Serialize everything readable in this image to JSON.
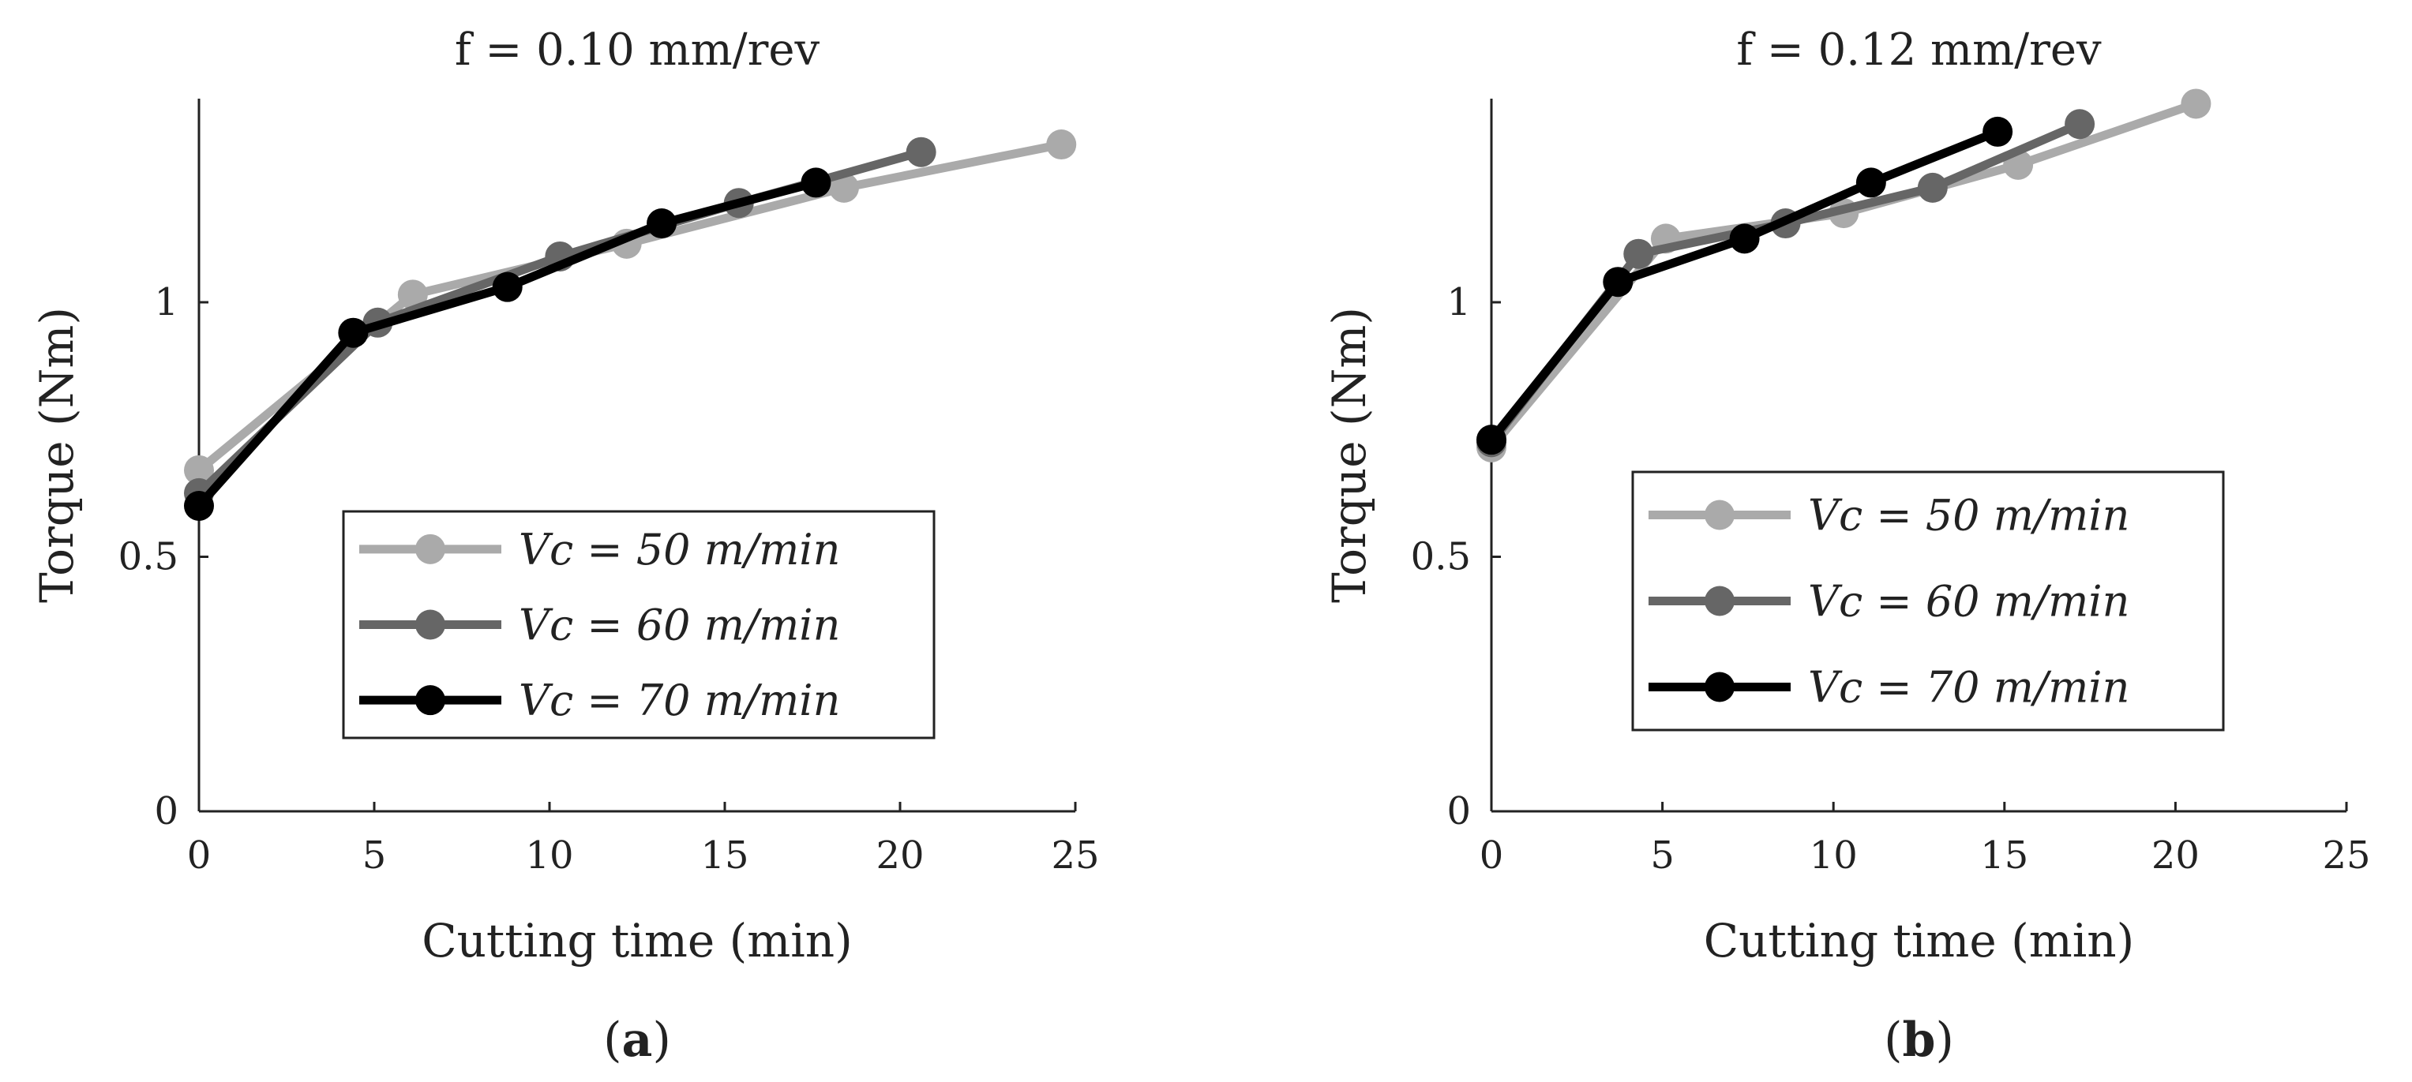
{
  "chart_data": [
    {
      "type": "line",
      "title": "f = 0.10 mm/rev",
      "xlabel": "Cutting time (min)",
      "ylabel": "Torque (Nm)",
      "xlim": [
        0,
        25
      ],
      "ylim": [
        0,
        1.4
      ],
      "xticks": [
        "0",
        "5",
        "10",
        "15",
        "20",
        "25"
      ],
      "yticks": [
        "0",
        "0.5",
        "1"
      ],
      "panel_label": {
        "open": "(",
        "letter": "a",
        "close": ")"
      },
      "legend_position": "bottom-right",
      "series": [
        {
          "name": "Vc = 50 m/min",
          "color": "#aaaaaa",
          "x": [
            0,
            6.1,
            12.2,
            18.4,
            24.6
          ],
          "y": [
            0.67,
            1.015,
            1.115,
            1.225,
            1.31
          ]
        },
        {
          "name": "Vc = 60 m/min",
          "color": "#666666",
          "x": [
            0,
            5.1,
            10.3,
            15.4,
            20.6
          ],
          "y": [
            0.625,
            0.96,
            1.09,
            1.195,
            1.295
          ]
        },
        {
          "name": "Vc = 70 m/min",
          "color": "#000000",
          "x": [
            0,
            4.4,
            8.8,
            13.2,
            17.6
          ],
          "y": [
            0.6,
            0.94,
            1.03,
            1.155,
            1.235
          ]
        }
      ]
    },
    {
      "type": "line",
      "title": "f = 0.12 mm/rev",
      "xlabel": "Cutting time (min)",
      "ylabel": "Torque (Nm)",
      "xlim": [
        0,
        25
      ],
      "ylim": [
        0,
        1.4
      ],
      "xticks": [
        "0",
        "5",
        "10",
        "15",
        "20",
        "25"
      ],
      "yticks": [
        "0",
        "0.5",
        "1"
      ],
      "panel_label": {
        "open": "(",
        "letter": "b",
        "close": ")"
      },
      "legend_position": "bottom-right",
      "series": [
        {
          "name": "Vc = 50 m/min",
          "color": "#aaaaaa",
          "x": [
            0,
            5.1,
            10.3,
            15.4,
            20.6
          ],
          "y": [
            0.715,
            1.125,
            1.175,
            1.27,
            1.39
          ]
        },
        {
          "name": "Vc = 60 m/min",
          "color": "#666666",
          "x": [
            0,
            4.3,
            8.6,
            12.9,
            17.2
          ],
          "y": [
            0.725,
            1.095,
            1.155,
            1.225,
            1.35
          ]
        },
        {
          "name": "Vc = 70 m/min",
          "color": "#000000",
          "x": [
            0,
            3.7,
            7.4,
            11.1,
            14.8
          ],
          "y": [
            0.73,
            1.04,
            1.125,
            1.235,
            1.335
          ]
        }
      ]
    }
  ]
}
